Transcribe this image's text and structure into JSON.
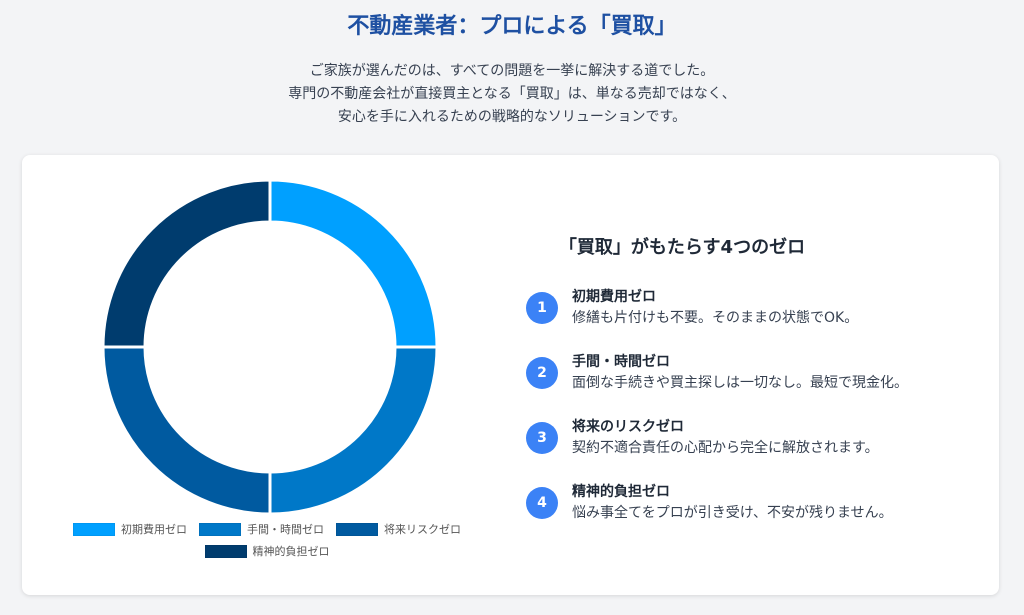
{
  "header": {
    "title": "不動産業者：プロによる「買取」",
    "intro_lines": [
      "ご家族が選んだのは、すべての問題を一挙に解決する道でした。",
      "専門の不動産会社が直接買主となる「買取」は、単なる売却ではなく、",
      "安心を手に入れるための戦略的なソリューションです。"
    ]
  },
  "panel": {
    "title": "「買取」がもたらす4つのゼロ",
    "items": [
      {
        "number": "1",
        "title": "初期費用ゼロ",
        "description": "修繕も片付けも不要。そのままの状態でOK。"
      },
      {
        "number": "2",
        "title": "手間・時間ゼロ",
        "description": "面倒な手続きや買主探しは一切なし。最短で現金化。"
      },
      {
        "number": "3",
        "title": "将来のリスクゼロ",
        "description": "契約不適合責任の心配から完全に解放されます。"
      },
      {
        "number": "4",
        "title": "精神的負担ゼロ",
        "description": "悩み事全てをプロが引き受け、不安が残りません。"
      }
    ]
  },
  "chart_data": {
    "type": "pie",
    "variant": "doughnut",
    "title": "",
    "categories": [
      "初期費用ゼロ",
      "手間・時間ゼロ",
      "将来リスクゼロ",
      "精神的負担ゼロ"
    ],
    "values": [
      25,
      25,
      25,
      25
    ],
    "colors": [
      "#00a0ff",
      "#0078c8",
      "#005aa0",
      "#003c6e"
    ],
    "legend_position": "bottom",
    "start": "top",
    "direction": "clockwise"
  }
}
